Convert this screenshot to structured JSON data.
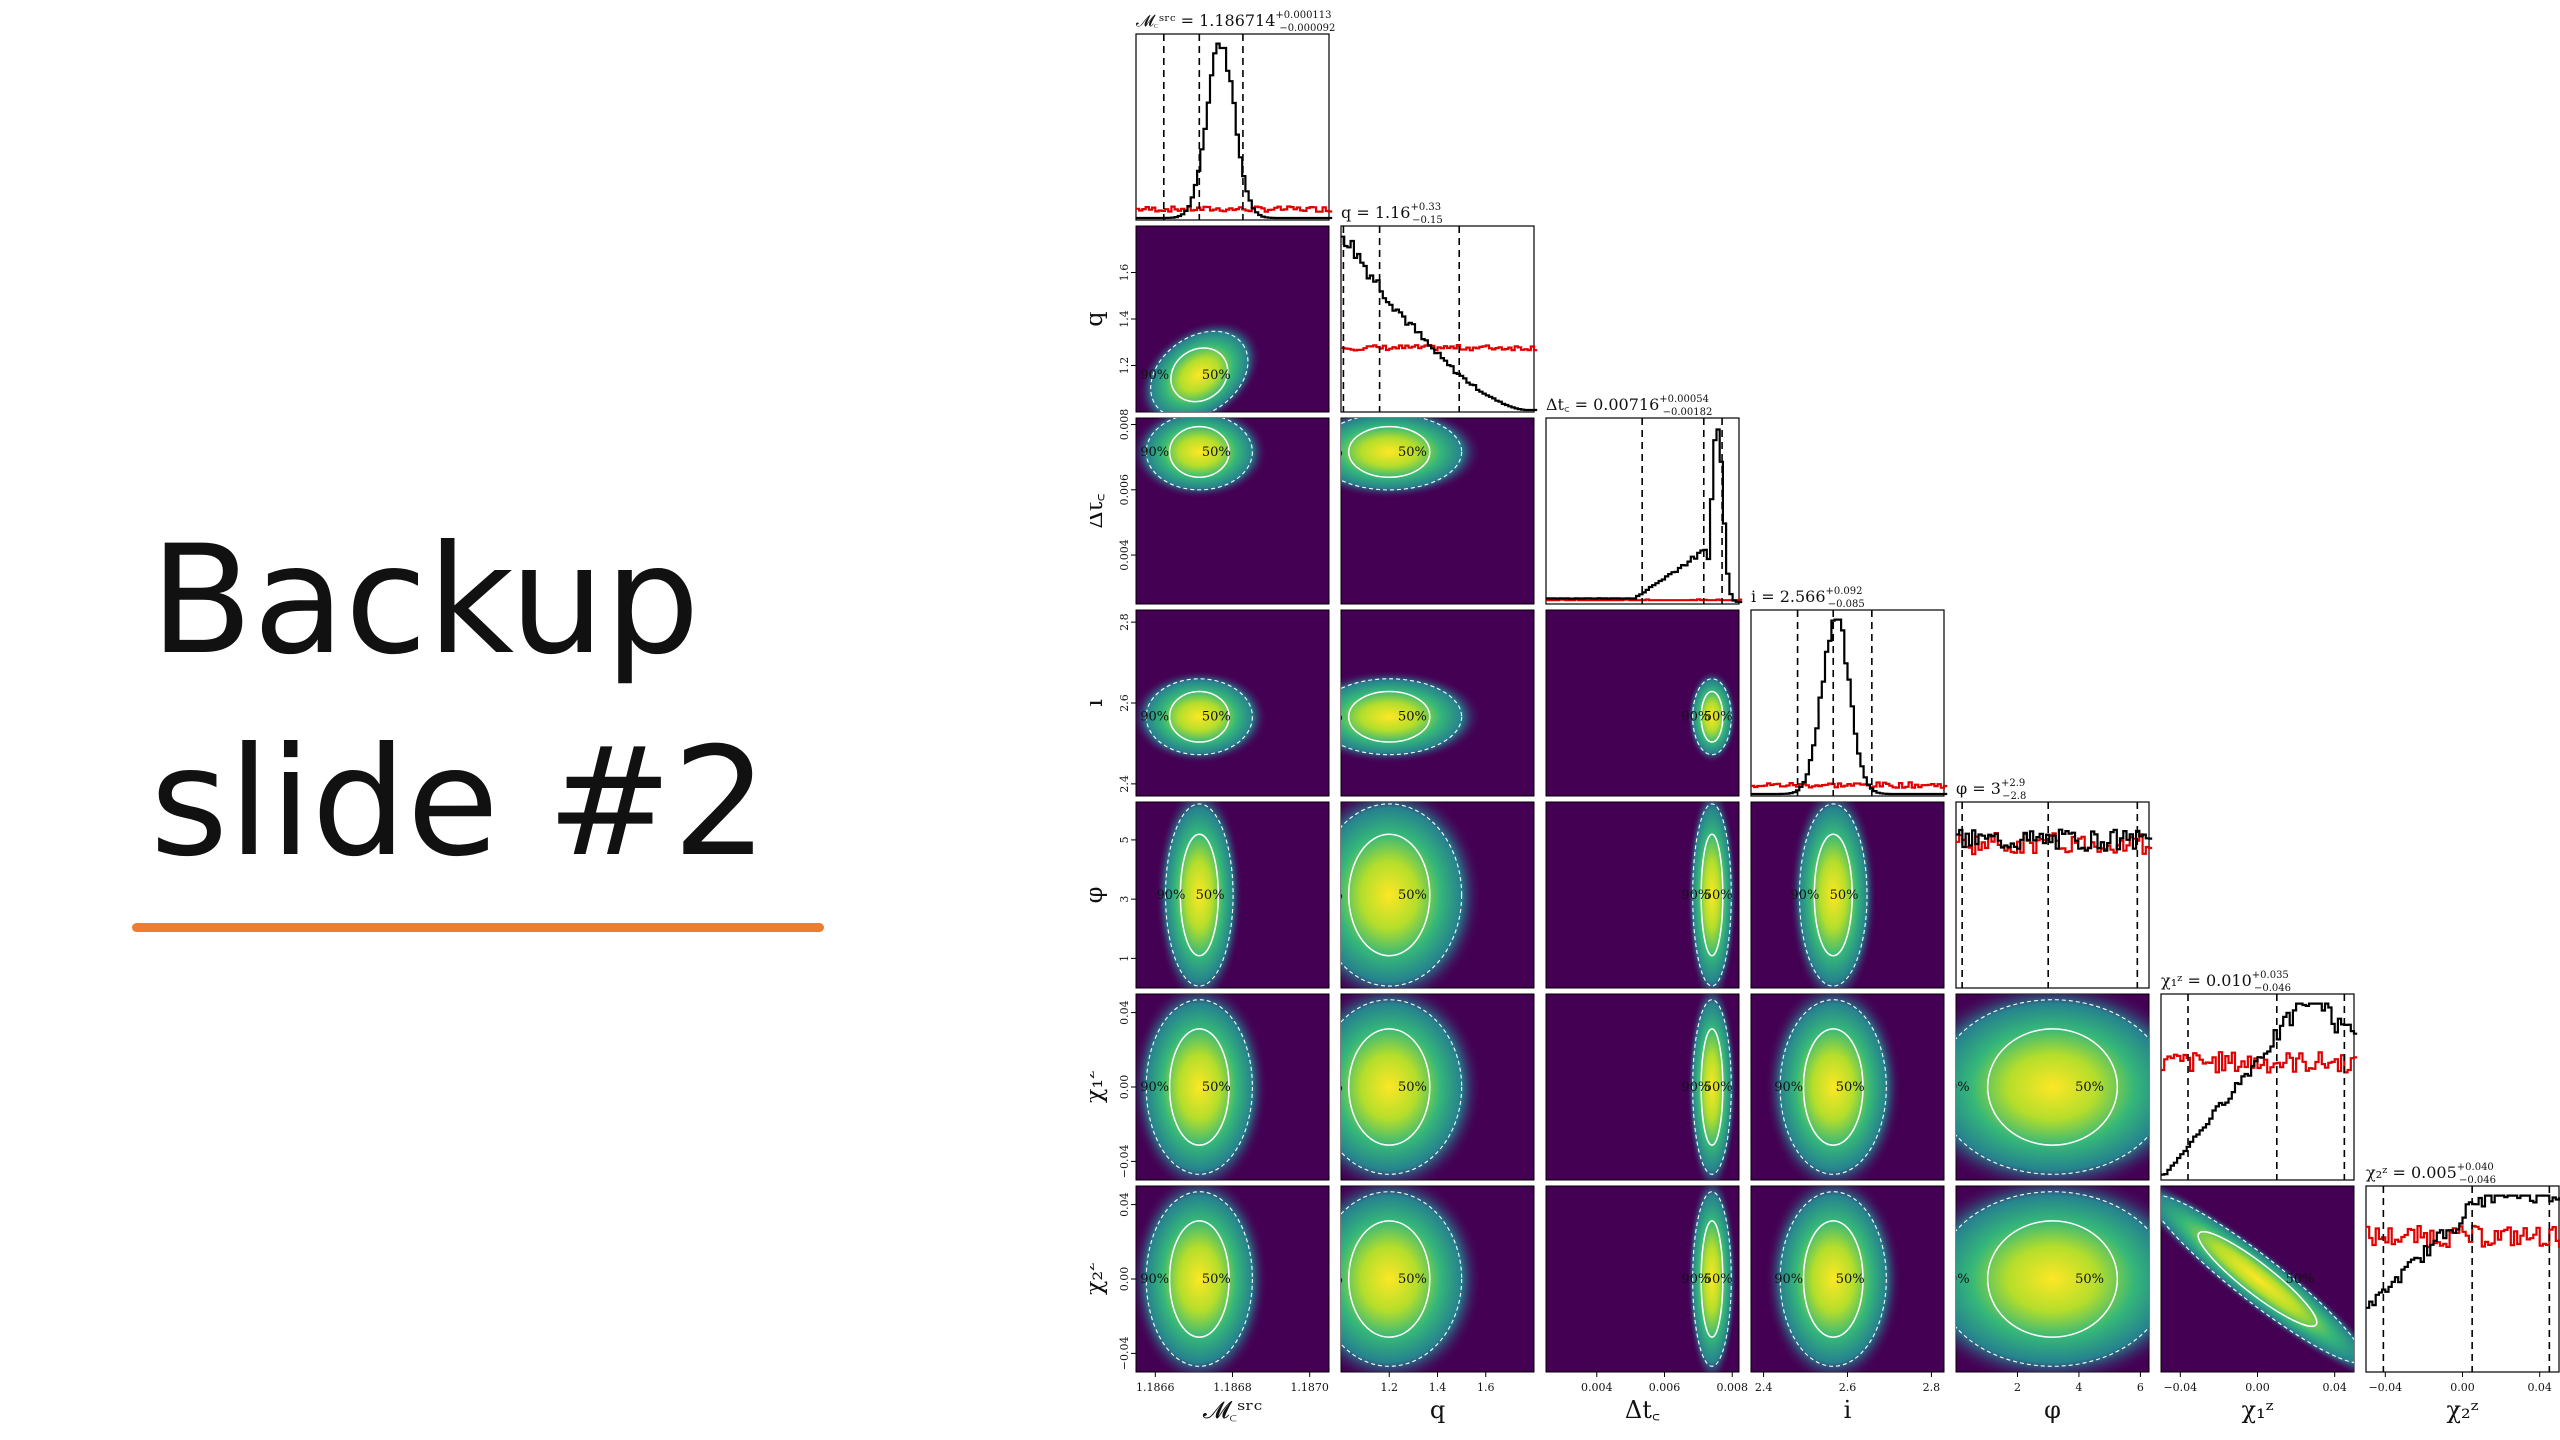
{
  "slide": {
    "title_line1": "Backup",
    "title_line2": "slide #2",
    "accent_color": "#ED7D31"
  },
  "chart_data": {
    "type": "corner",
    "parameters": [
      {
        "key": "Mc",
        "axis_label": "𝓜꜀ˢʳᶜ",
        "title_prefix": "𝓜꜀ˢʳᶜ = ",
        "median": "1.186714",
        "upper": "+0.000113",
        "lower": "−0.000092",
        "range": [
          1.18655,
          1.18705
        ],
        "ticks": [
          1.1866,
          1.1868,
          1.187
        ],
        "tick_labels": [
          "1.1866",
          "1.1868",
          "1.1870"
        ],
        "markers": [
          1.186622,
          1.186714,
          1.186827
        ]
      },
      {
        "key": "q",
        "axis_label": "q",
        "title_prefix": "q = ",
        "median": "1.16",
        "upper": "+0.33",
        "lower": "−0.15",
        "range": [
          1.0,
          1.8
        ],
        "ticks": [
          1.2,
          1.4,
          1.6
        ],
        "tick_labels": [
          "1.2",
          "1.4",
          "1.6"
        ],
        "markers": [
          1.01,
          1.16,
          1.49
        ]
      },
      {
        "key": "dtc",
        "axis_label": "Δt꜀",
        "title_prefix": "Δt꜀ = ",
        "median": "0.00716",
        "upper": "+0.00054",
        "lower": "−0.00182",
        "range": [
          0.0025,
          0.0082
        ],
        "ticks": [
          0.004,
          0.006,
          0.008
        ],
        "tick_labels": [
          "0.004",
          "0.006",
          "0.008"
        ],
        "markers": [
          0.00534,
          0.00716,
          0.0077
        ]
      },
      {
        "key": "i",
        "axis_label": "i",
        "title_prefix": "i = ",
        "median": "2.566",
        "upper": "+0.092",
        "lower": "−0.085",
        "range": [
          2.37,
          2.83
        ],
        "ticks": [
          2.4,
          2.6,
          2.8
        ],
        "tick_labels": [
          "2.4",
          "2.6",
          "2.8"
        ],
        "markers": [
          2.481,
          2.566,
          2.658
        ]
      },
      {
        "key": "phi",
        "axis_label": "φ",
        "title_prefix": "φ = ",
        "median": "3",
        "upper": "+2.9",
        "lower": "−2.8",
        "range": [
          0,
          6.28
        ],
        "ticks": [
          2,
          4,
          6
        ],
        "tick_labels": [
          "2",
          "4",
          "6"
        ],
        "y_ticks": [
          1,
          3,
          5
        ],
        "y_tick_labels": [
          "1",
          "3",
          "5"
        ],
        "markers": [
          0.2,
          3.0,
          5.9
        ]
      },
      {
        "key": "chi1",
        "axis_label": "χ₁ᶻ",
        "title_prefix": "χ₁ᶻ = ",
        "median": "0.010",
        "upper": "+0.035",
        "lower": "−0.046",
        "range": [
          -0.05,
          0.05
        ],
        "ticks": [
          -0.04,
          0.0,
          0.04
        ],
        "tick_labels": [
          "−0.04",
          "0.00",
          "0.04"
        ],
        "markers": [
          -0.036,
          0.01,
          0.045
        ]
      },
      {
        "key": "chi2",
        "axis_label": "χ₂ᶻ",
        "title_prefix": "χ₂ᶻ = ",
        "median": "0.005",
        "upper": "+0.040",
        "lower": "−0.046",
        "range": [
          -0.05,
          0.05
        ],
        "ticks": [
          -0.04,
          0.0,
          0.04
        ],
        "tick_labels": [
          "−0.04",
          "0.00",
          "0.04"
        ],
        "markers": [
          -0.041,
          0.005,
          0.045
        ]
      }
    ],
    "contour_labels": {
      "inner": "50%",
      "outer": "90%"
    },
    "colors": {
      "posterior": "#000000",
      "prior": "#e00000",
      "density_low": "#440154",
      "density_high": "#fde725",
      "contour": "#ffffff"
    },
    "histogram_shapes": [
      "peaked",
      "decaying",
      "skew-left",
      "peaked",
      "flat",
      "rising",
      "rising-soft"
    ],
    "prior_levels": [
      0.05,
      0.35,
      0.0,
      0.05,
      0.8,
      0.65,
      0.75
    ]
  }
}
